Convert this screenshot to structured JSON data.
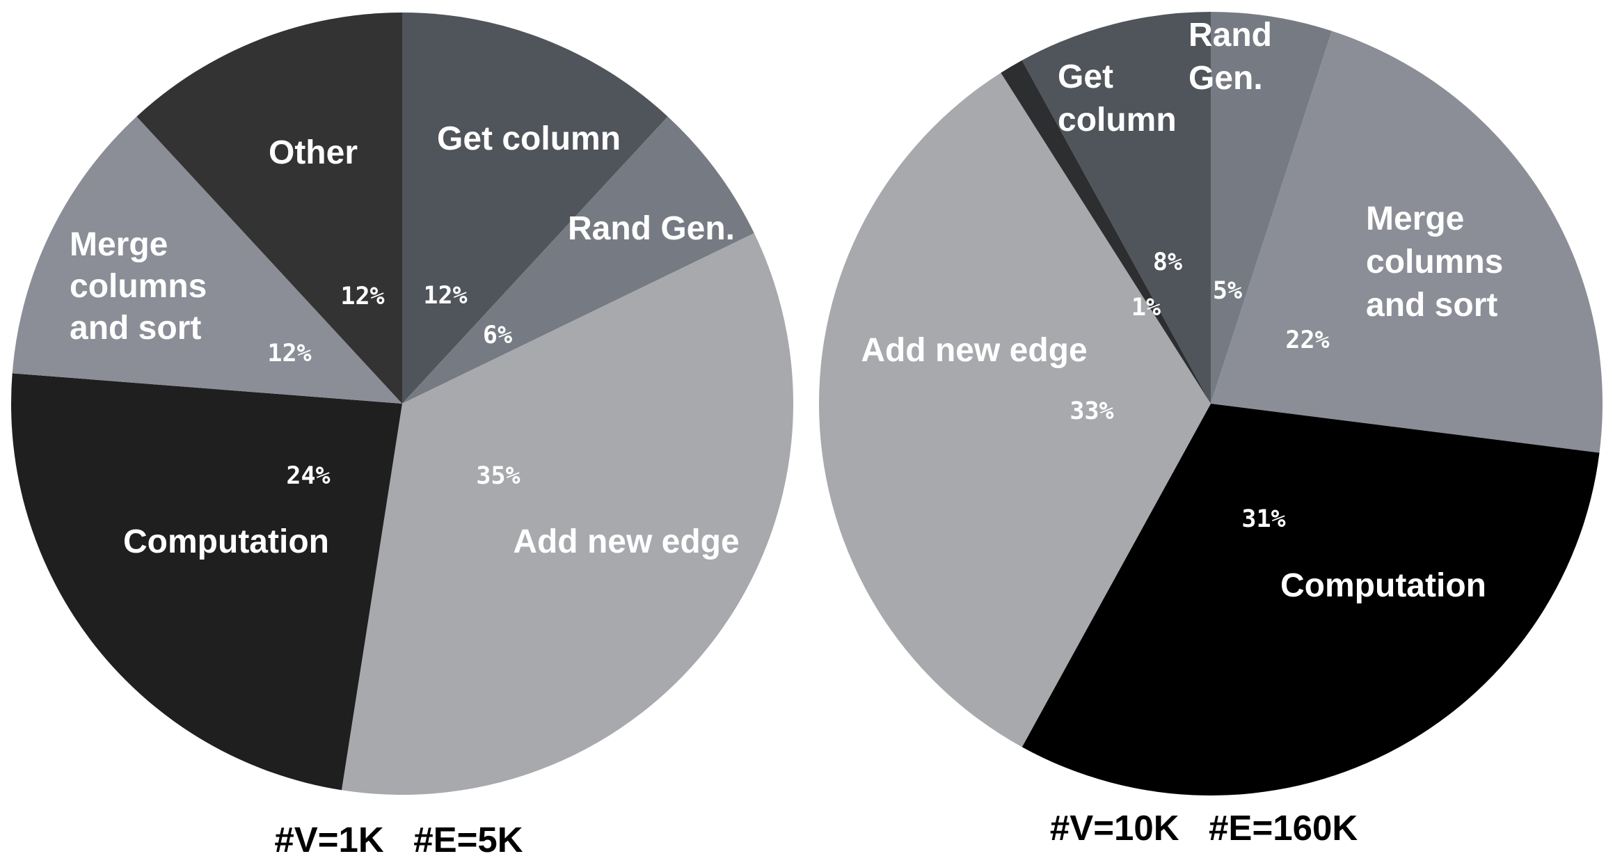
{
  "chart_data": [
    {
      "type": "pie",
      "caption": "#V=1K   #E=5K",
      "slices": [
        {
          "label": "Get column",
          "value": 12,
          "value_label": "12%",
          "color": "#50545b"
        },
        {
          "label": "Rand Gen.",
          "value": 6,
          "value_label": "6%",
          "color": "#767b83"
        },
        {
          "label": "Add new edge",
          "value": 35,
          "value_label": "35%",
          "color": "#a7a9ac"
        },
        {
          "label": "Computation",
          "value": 24,
          "value_label": "24%",
          "color": "#1f1f1f"
        },
        {
          "label": "Merge columns and sort",
          "value": 12,
          "value_label": "12%",
          "color": "#8b8e97"
        },
        {
          "label": "Other",
          "value": 12,
          "value_label": "12%",
          "color": "#333333"
        }
      ]
    },
    {
      "type": "pie",
      "caption": "#V=10K   #E=160K",
      "slices": [
        {
          "label": "Rand Gen.",
          "value": 5,
          "value_label": "5%",
          "color": "#767b83"
        },
        {
          "label": "Merge columns and sort",
          "value": 22,
          "value_label": "22%",
          "color": "#8b8e97"
        },
        {
          "label": "Computation",
          "value": 31,
          "value_label": "31%",
          "color": "#000000"
        },
        {
          "label": "Add new edge",
          "value": 33,
          "value_label": "33%",
          "color": "#a7a9ac"
        },
        {
          "label": "",
          "value": 1,
          "value_label": "1%",
          "color": "#2d2e2f"
        },
        {
          "label": "Get column",
          "value": 8,
          "value_label": "8%",
          "color": "#50545b"
        }
      ]
    }
  ]
}
